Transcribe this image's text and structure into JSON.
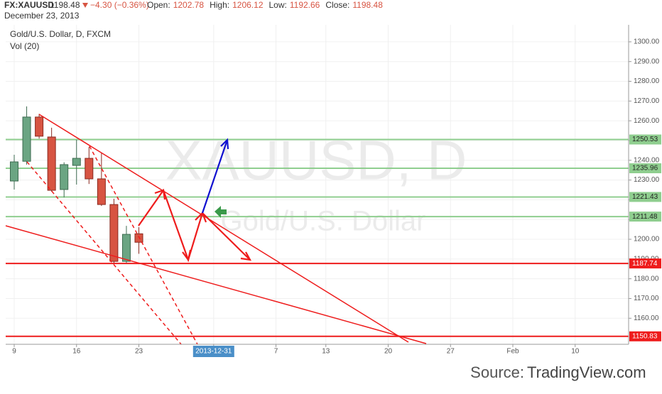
{
  "header": {
    "symbol": "FX:XAUUSD",
    "last": 1198.48,
    "change": "−4.30 (−0.36%)",
    "date": "December 23, 2013",
    "fields": [
      {
        "label": "Open:",
        "value": 1202.78
      },
      {
        "label": "High:",
        "value": 1206.12
      },
      {
        "label": "Low:",
        "value": 1192.66
      },
      {
        "label": "Close:",
        "value": 1198.48
      }
    ]
  },
  "chart_data": {
    "type": "candlestick",
    "title": "Gold/U.S. Dollar, D, FXCM",
    "subtitle": "Vol (20)",
    "watermark": [
      "XAUUSD, D",
      "Gold/U.S. Dollar"
    ],
    "categories": [
      "9",
      null,
      null,
      null,
      null,
      "16",
      null,
      null,
      null,
      null,
      "23",
      null,
      null,
      null,
      null,
      null,
      "2013-12-31",
      null,
      null,
      null,
      null,
      "7",
      null,
      null,
      null,
      "13",
      null,
      null,
      null,
      null,
      "20",
      null,
      null,
      null,
      null,
      "27",
      null,
      null,
      null,
      null,
      "Feb",
      null,
      null,
      null,
      null,
      "10",
      null,
      null,
      null,
      null
    ],
    "open": [
      1229.5,
      1239.5,
      1261.9,
      1251.8,
      1225.2,
      1237.4,
      1241.0,
      1230.6,
      1217.6,
      1188.8,
      1202.78,
      null,
      null,
      null,
      null,
      null,
      null,
      null,
      null,
      null,
      null,
      null,
      null,
      null,
      null,
      null,
      null,
      null,
      null,
      null,
      null,
      null,
      null,
      null,
      null,
      null,
      null,
      null,
      null,
      null,
      null,
      null,
      null,
      null,
      null,
      null,
      null,
      null,
      null,
      null
    ],
    "high": [
      1242.8,
      1267.3,
      1263.5,
      1256.5,
      1239.0,
      1250.4,
      1246.8,
      1243.9,
      1220.5,
      1206.8,
      1206.12,
      null,
      null,
      null,
      null,
      null,
      null,
      null,
      null,
      null,
      null,
      null,
      null,
      null,
      null,
      null,
      null,
      null,
      null,
      null,
      null,
      null,
      null,
      null,
      null,
      null,
      null,
      null,
      null,
      null,
      null,
      null,
      null,
      null,
      null,
      null,
      null,
      null,
      null,
      null
    ],
    "low": [
      1225.2,
      1237.8,
      1251.0,
      1224.1,
      1221.2,
      1227.7,
      1228.0,
      1216.9,
      1188.0,
      1188.0,
      1192.66,
      null,
      null,
      null,
      null,
      null,
      null,
      null,
      null,
      null,
      null,
      null,
      null,
      null,
      null,
      null,
      null,
      null,
      null,
      null,
      null,
      null,
      null,
      null,
      null,
      null,
      null,
      null,
      null,
      null,
      null,
      null,
      null,
      null,
      null,
      null,
      null,
      null,
      null,
      null
    ],
    "close": [
      1239.2,
      1261.9,
      1252.2,
      1224.8,
      1237.8,
      1241.0,
      1230.6,
      1217.6,
      1188.8,
      1202.5,
      1198.48,
      null,
      null,
      null,
      null,
      null,
      null,
      null,
      null,
      null,
      null,
      null,
      null,
      null,
      null,
      null,
      null,
      null,
      null,
      null,
      null,
      null,
      null,
      null,
      null,
      null,
      null,
      null,
      null,
      null,
      null,
      null,
      null,
      null,
      null,
      null,
      null,
      null,
      null,
      null
    ],
    "up_color": "#6ba583",
    "down_color": "#d75442",
    "ylim": [
      1146.8,
      1308.6
    ],
    "yticks": [
      {
        "value": 1160,
        "label": "1160.00"
      },
      {
        "value": 1170,
        "label": "1170.00"
      },
      {
        "value": 1180,
        "label": "1180.00"
      },
      {
        "value": 1190,
        "label": "1190.00"
      },
      {
        "value": 1200,
        "label": "1200.00"
      },
      {
        "value": 1210,
        "label": "1210.00"
      },
      {
        "value": 1220,
        "label": "1220.00"
      },
      {
        "value": 1230,
        "label": "1230.00"
      },
      {
        "value": 1240,
        "label": "1240.00"
      },
      {
        "value": 1250,
        "label": "1250.00"
      },
      {
        "value": 1260,
        "label": "1260.00"
      },
      {
        "value": 1270,
        "label": "1270.00"
      },
      {
        "value": 1280,
        "label": "1280.00"
      },
      {
        "value": 1290,
        "label": "1290.00"
      },
      {
        "value": 1300,
        "label": "1300.00"
      }
    ],
    "grid": true,
    "levels": [
      {
        "value": 1250.53,
        "color": "#8fce8f"
      },
      {
        "value": 1235.96,
        "color": "#8fce8f"
      },
      {
        "value": 1221.43,
        "color": "#8fce8f"
      },
      {
        "value": 1211.48,
        "color": "#8fce8f"
      },
      {
        "value": 1187.74,
        "color": "#ee1c1c"
      },
      {
        "value": 1150.83,
        "color": "#ee1c1c"
      }
    ]
  },
  "source": {
    "prefix": "Source:",
    "name": "TradingView.com"
  }
}
